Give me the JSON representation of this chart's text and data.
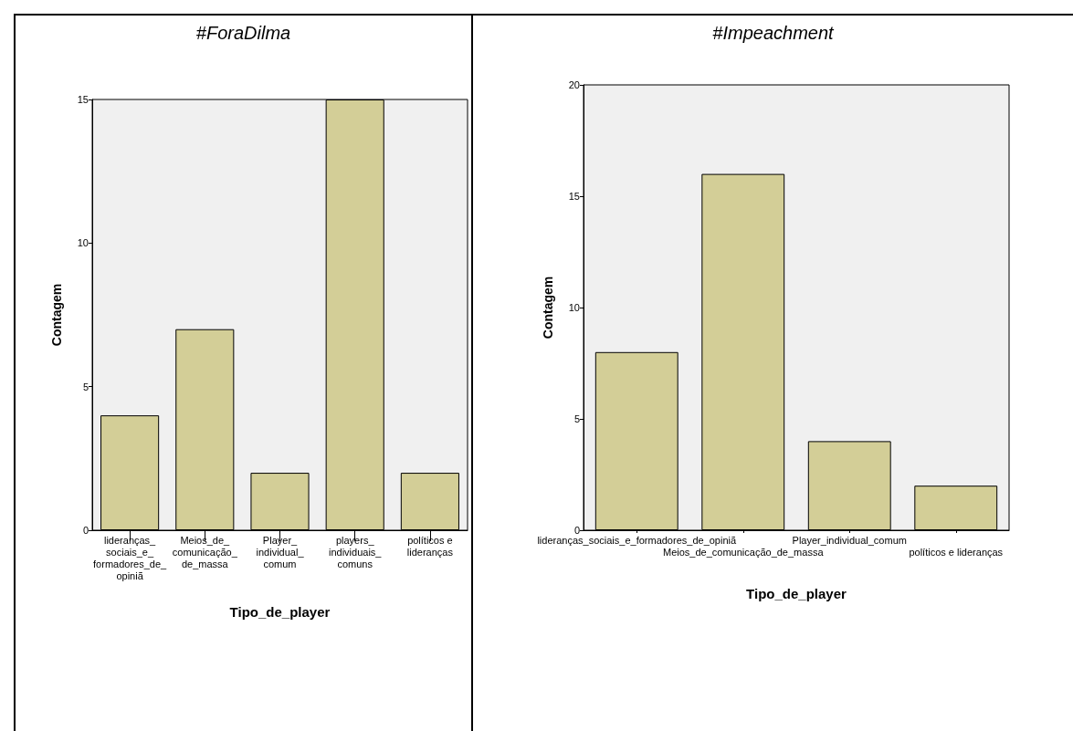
{
  "chart_data": [
    {
      "type": "bar",
      "title": "#ForaDilma",
      "xlabel": "Tipo_de_player",
      "ylabel": "Contagem",
      "categories": [
        "lideranças_sociais_e_formadores_de_opiniã",
        "Meios_de_comunicação_de_massa",
        "Player_individual_comum",
        "players_individuais_comuns",
        "políticos e lideranças"
      ],
      "values": [
        4,
        7,
        2,
        15,
        2
      ],
      "color": "#d3ce97",
      "ylim": [
        0,
        15
      ],
      "yticks": [
        0,
        5,
        10,
        15
      ],
      "grid": false
    },
    {
      "type": "bar",
      "title": "#Impeachment",
      "xlabel": "Tipo_de_player",
      "ylabel": "Contagem",
      "categories": [
        "lideranças_sociais_e_formadores_de_opiniã",
        "Meios_de_comunicação_de_massa",
        "Player_individual_comum",
        "políticos e lideranças"
      ],
      "values": [
        8,
        16,
        4,
        2
      ],
      "color": "#d3ce97",
      "ylim": [
        0,
        20
      ],
      "yticks": [
        0,
        5,
        10,
        15,
        20
      ],
      "grid": false
    }
  ]
}
